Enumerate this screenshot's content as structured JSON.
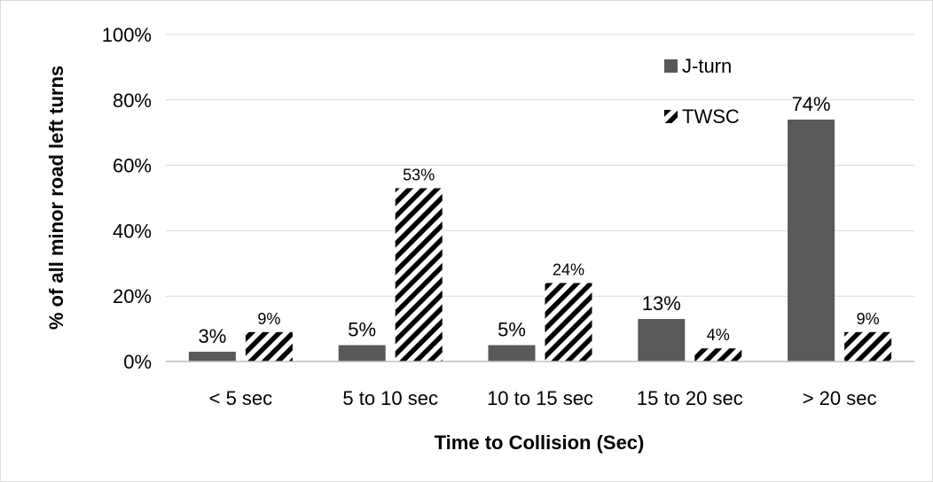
{
  "chart_data": {
    "type": "bar",
    "title": "",
    "xlabel": "Time to Collision (Sec)",
    "ylabel": "% of all minor road left turns",
    "categories": [
      "< 5 sec",
      "5 to 10 sec",
      "10 to 15 sec",
      "15 to 20 sec",
      "> 20 sec"
    ],
    "series": [
      {
        "name": "J-turn",
        "values": [
          3,
          5,
          5,
          13,
          74
        ],
        "labels": [
          "3%",
          "5%",
          "5%",
          "13%",
          "74%"
        ],
        "fill": "solid",
        "color": "#595959"
      },
      {
        "name": "TWSC",
        "values": [
          9,
          53,
          24,
          4,
          9
        ],
        "labels": [
          "9%",
          "53%",
          "24%",
          "4%",
          "9%"
        ],
        "fill": "diagonal-stripes",
        "color": "#000000"
      }
    ],
    "ylim": [
      0,
      100
    ],
    "yticks": [
      0,
      20,
      40,
      60,
      80,
      100
    ],
    "ytick_labels": [
      "0%",
      "20%",
      "40%",
      "60%",
      "80%",
      "100%"
    ],
    "grid": true,
    "legend_position": "top-right, inside plot"
  }
}
